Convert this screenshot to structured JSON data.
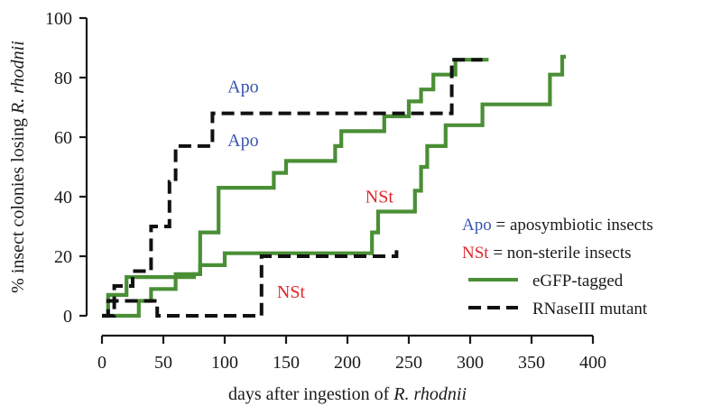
{
  "colors": {
    "green": "#4a8f35",
    "black": "#111111",
    "apo_blue": "#3a55b0",
    "nst_red": "#e0262b"
  },
  "chart_data": {
    "type": "line",
    "title": "",
    "xlabel_prefix": "days after ingestion of ",
    "xlabel_italic": "R. rhodnii",
    "ylabel_prefix": "% insect colonies losing ",
    "ylabel_italic": "R. rhodnii",
    "xlim": [
      0,
      400
    ],
    "ylim": [
      0,
      100
    ],
    "xticks": [
      "0",
      "50",
      "100",
      "150",
      "200",
      "250",
      "300",
      "350",
      "400"
    ],
    "yticks": [
      "0",
      "20",
      "40",
      "60",
      "80",
      "100"
    ],
    "line_style": "step",
    "series": [
      {
        "name": "eGFP-tagged",
        "group": "Apo",
        "style": "solid",
        "x": [
          0,
          5,
          20,
          75,
          80,
          95,
          130,
          140,
          150,
          190,
          195,
          230,
          250,
          260,
          270,
          288,
          315
        ],
        "y": [
          0,
          7,
          13,
          14,
          28,
          43,
          43,
          48,
          52,
          57,
          62,
          67,
          72,
          76,
          81,
          86,
          86
        ]
      },
      {
        "name": "eGFP-tagged",
        "group": "NSt",
        "style": "solid",
        "x": [
          0,
          30,
          40,
          60,
          80,
          100,
          215,
          220,
          225,
          240,
          255,
          260,
          265,
          280,
          295,
          310,
          350,
          365,
          375,
          378
        ],
        "y": [
          0,
          5,
          9,
          14,
          17,
          21,
          21,
          28,
          35,
          35,
          42,
          50,
          57,
          64,
          64,
          71,
          71,
          81,
          87,
          87
        ]
      },
      {
        "name": "RNaseIII mutant",
        "group": "Apo",
        "style": "dashed",
        "x": [
          0,
          10,
          25,
          40,
          45,
          55,
          60,
          65,
          90,
          95,
          240,
          285,
          290,
          310
        ],
        "y": [
          0,
          10,
          15,
          30,
          30,
          45,
          57,
          57,
          68,
          68,
          68,
          86,
          86,
          86
        ]
      },
      {
        "name": "RNaseIII mutant",
        "group": "NSt",
        "style": "dashed",
        "x": [
          0,
          5,
          15,
          30,
          40,
          45,
          60,
          100,
          125,
          130,
          200,
          240
        ],
        "y": [
          0,
          5,
          5,
          5,
          5,
          0,
          0,
          0,
          0,
          20,
          20,
          22
        ]
      }
    ],
    "annotations": [
      {
        "text": "Apo",
        "x": 115,
        "y": 75,
        "color_key": "apo_blue"
      },
      {
        "text": "Apo",
        "x": 115,
        "y": 57,
        "color_key": "apo_blue"
      },
      {
        "text": "NSt",
        "x": 226,
        "y": 38,
        "color_key": "nst_red"
      },
      {
        "text": "NSt",
        "x": 154,
        "y": 6,
        "color_key": "nst_red"
      }
    ],
    "legend": {
      "placement": "bottom-right",
      "abbr": [
        {
          "abbr": "Apo",
          "eq": "=",
          "desc": "aposymbiotic insects",
          "color_key": "apo_blue"
        },
        {
          "abbr": "NSt",
          "eq": "=",
          "desc": "non-sterile insects",
          "color_key": "nst_red"
        }
      ],
      "lines": [
        {
          "label": "eGFP-tagged",
          "style": "solid"
        },
        {
          "label": "RNaseIII mutant",
          "style": "dashed"
        }
      ]
    },
    "grid": false
  }
}
